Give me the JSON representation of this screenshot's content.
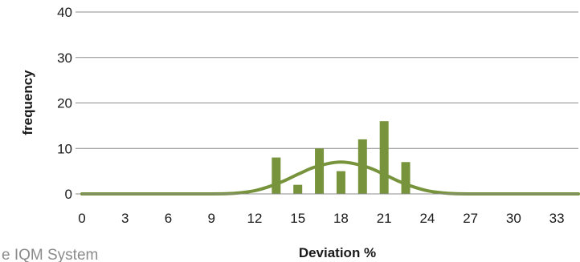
{
  "footer": {
    "caption": "e IQM System"
  },
  "chart_data": {
    "type": "bar",
    "title": "",
    "xlabel": "Deviation %",
    "ylabel": "frequency",
    "xlim": [
      0,
      34.5
    ],
    "ylim": [
      0,
      40
    ],
    "x_ticks": [
      "0",
      "3",
      "6",
      "9",
      "12",
      "15",
      "18",
      "21",
      "24",
      "27",
      "30",
      "33"
    ],
    "y_ticks": [
      "0",
      "10",
      "20",
      "30",
      "40"
    ],
    "grid": true,
    "series": [
      {
        "type": "bar",
        "x": [
          13.5,
          15,
          16.5,
          18,
          19.5,
          21,
          22.5
        ],
        "values": [
          8,
          2,
          10,
          5,
          12,
          16,
          7
        ]
      },
      {
        "type": "line",
        "x": [
          0,
          2,
          4,
          6,
          8,
          10,
          11,
          12,
          13,
          14,
          15,
          16,
          17,
          18,
          19,
          20,
          21,
          22,
          23,
          24,
          25,
          26,
          28,
          30,
          32,
          34.5
        ],
        "values": [
          0,
          0,
          0,
          0,
          0,
          0.05,
          0.25,
          0.7,
          1.6,
          2.8,
          4.3,
          5.7,
          6.6,
          7,
          6.6,
          5.7,
          4.3,
          2.8,
          1.6,
          0.7,
          0.25,
          0.05,
          0,
          0,
          0,
          0
        ]
      }
    ],
    "colors": {
      "bar": "#77933c",
      "line": "#77933c",
      "grid": "#8c8c8c",
      "axis": "#8c8c8c"
    }
  }
}
